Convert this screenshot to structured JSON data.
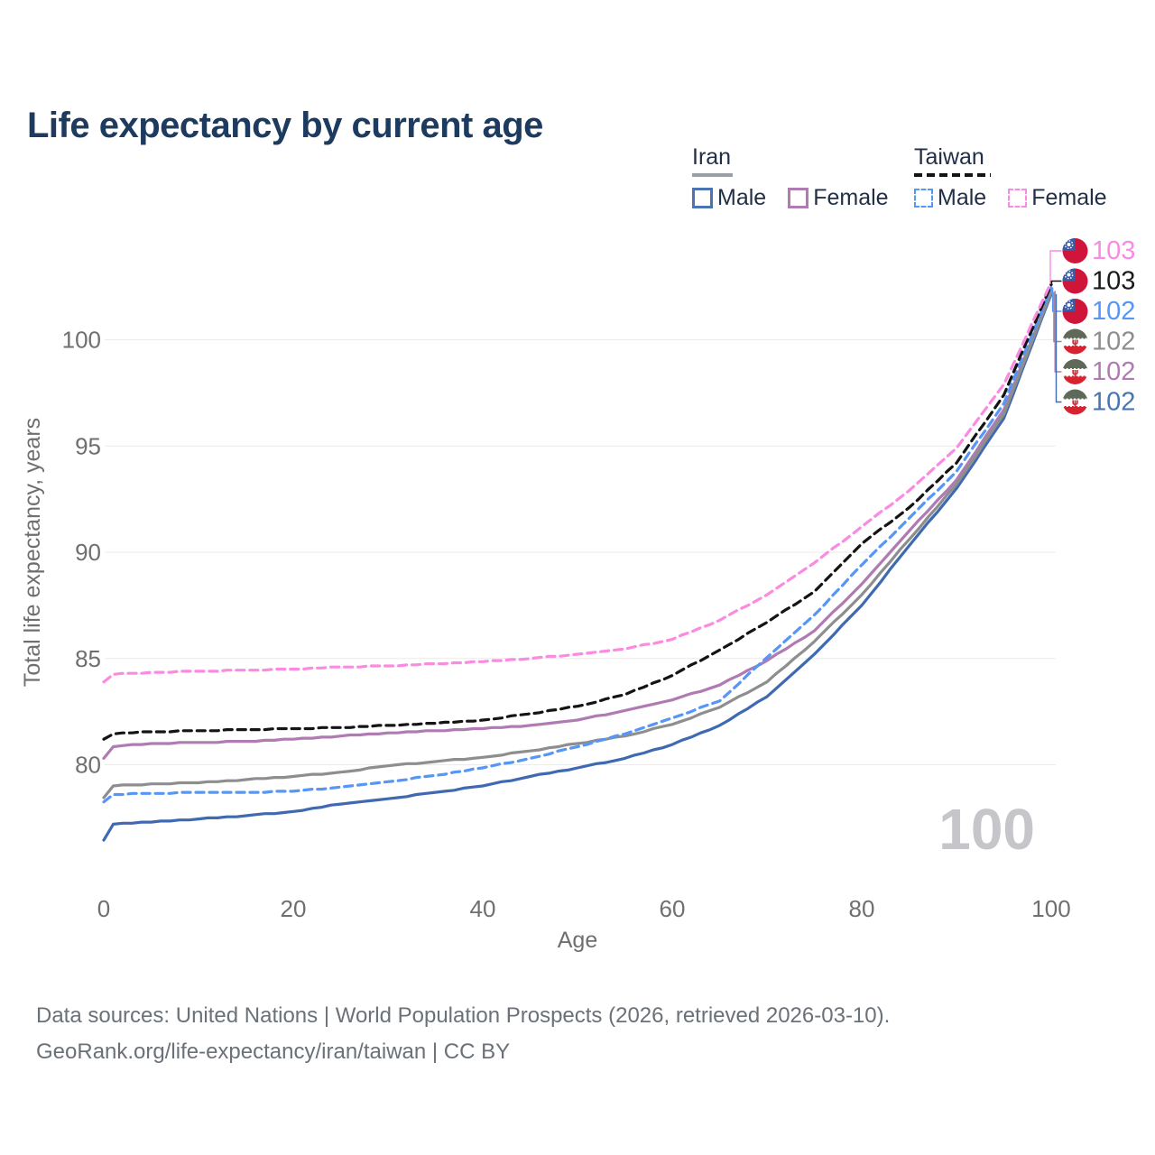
{
  "title": "Life expectancy by current age",
  "legend": {
    "groups": [
      {
        "country": "Iran",
        "line_style": "solid",
        "underline_color": "#9aa0a6",
        "items": [
          {
            "label": "Male",
            "color": "#4a74b4"
          },
          {
            "label": "Female",
            "color": "#b583b5"
          }
        ]
      },
      {
        "country": "Taiwan",
        "line_style": "dashed",
        "underline_color": "#141414",
        "items": [
          {
            "label": "Male",
            "color": "#5596f6"
          },
          {
            "label": "Female",
            "color": "#fb8ae1"
          }
        ]
      }
    ]
  },
  "axes": {
    "x_label": "Age",
    "y_label": "Total life expectancy, years"
  },
  "hover_readout": "100",
  "footer": {
    "line1": "Data sources: United Nations | World Population Prospects (2026, retrieved 2026-03-10).",
    "line2": "GeoRank.org/life-expectancy/iran/taiwan | CC BY"
  },
  "chart_data": {
    "type": "line",
    "title": "Life expectancy by current age",
    "xlabel": "Age",
    "ylabel": "Total life expectancy, years",
    "xlim": [
      0,
      100
    ],
    "ylim": [
      76,
      103.5
    ],
    "x_ticks": [
      0,
      20,
      40,
      60,
      80,
      100
    ],
    "y_ticks": [
      80,
      85,
      90,
      95,
      100
    ],
    "grid": "horizontal",
    "legend_position": "top-right",
    "ages": [
      0,
      1,
      5,
      10,
      15,
      20,
      25,
      30,
      35,
      40,
      45,
      50,
      55,
      60,
      65,
      70,
      75,
      80,
      85,
      90,
      95,
      100
    ],
    "series": [
      {
        "name": "Taiwan Female",
        "country": "Taiwan",
        "sex": "Female",
        "color": "#fb8ae1",
        "dashed": true,
        "flag": "taiwan",
        "end_label": "103",
        "end_label_color": "#fb8ae1",
        "values": [
          83.9,
          84.25,
          84.35,
          84.4,
          84.45,
          84.5,
          84.6,
          84.65,
          84.75,
          84.85,
          85.0,
          85.2,
          85.45,
          85.9,
          86.8,
          88.0,
          89.5,
          91.2,
          92.9,
          94.9,
          97.9,
          102.7
        ]
      },
      {
        "name": "Taiwan Both sexes",
        "country": "Taiwan",
        "sex": "Both",
        "color": "#141414",
        "dashed": true,
        "flag": "taiwan",
        "end_label": "103",
        "end_label_color": "#1a1a1a",
        "values": [
          81.2,
          81.45,
          81.55,
          81.6,
          81.65,
          81.7,
          81.75,
          81.85,
          81.95,
          82.1,
          82.4,
          82.75,
          83.3,
          84.2,
          85.4,
          86.7,
          88.15,
          90.4,
          92.1,
          94.2,
          97.4,
          102.6
        ]
      },
      {
        "name": "Taiwan Male",
        "country": "Taiwan",
        "sex": "Male",
        "color": "#5596f6",
        "dashed": true,
        "flag": "taiwan",
        "end_label": "102",
        "end_label_color": "#5596f6",
        "values": [
          78.25,
          78.6,
          78.65,
          78.7,
          78.7,
          78.75,
          78.95,
          79.2,
          79.5,
          79.85,
          80.3,
          80.85,
          81.45,
          82.2,
          83.0,
          85.05,
          87.05,
          89.4,
          91.6,
          93.8,
          97.0,
          102.45
        ]
      },
      {
        "name": "Iran Both sexes",
        "country": "Iran",
        "sex": "Both",
        "color": "#8e8e8e",
        "dashed": false,
        "flag": "iran",
        "end_label": "102",
        "end_label_color": "#8e8e8e",
        "values": [
          78.45,
          79.0,
          79.1,
          79.15,
          79.3,
          79.45,
          79.65,
          79.95,
          80.15,
          80.35,
          80.65,
          81.0,
          81.35,
          81.9,
          82.7,
          83.9,
          85.8,
          88.0,
          90.6,
          93.2,
          96.5,
          102.25
        ]
      },
      {
        "name": "Iran Female",
        "country": "Iran",
        "sex": "Female",
        "color": "#b07ab2",
        "dashed": false,
        "flag": "iran",
        "end_label": "102",
        "end_label_color": "#b07ab2",
        "values": [
          80.3,
          80.85,
          81.0,
          81.05,
          81.1,
          81.2,
          81.35,
          81.5,
          81.6,
          81.7,
          81.85,
          82.1,
          82.55,
          83.05,
          83.75,
          84.9,
          86.3,
          88.5,
          91.0,
          93.4,
          96.7,
          102.3
        ]
      },
      {
        "name": "Iran Male",
        "country": "Iran",
        "sex": "Male",
        "color": "#3f69b0",
        "dashed": false,
        "flag": "iran",
        "end_label": "102",
        "end_label_color": "#4a74b4",
        "values": [
          76.45,
          77.2,
          77.3,
          77.45,
          77.6,
          77.8,
          78.15,
          78.4,
          78.7,
          79.0,
          79.45,
          79.85,
          80.3,
          80.95,
          81.85,
          83.2,
          85.2,
          87.5,
          90.3,
          93.0,
          96.3,
          102.15
        ]
      }
    ]
  }
}
